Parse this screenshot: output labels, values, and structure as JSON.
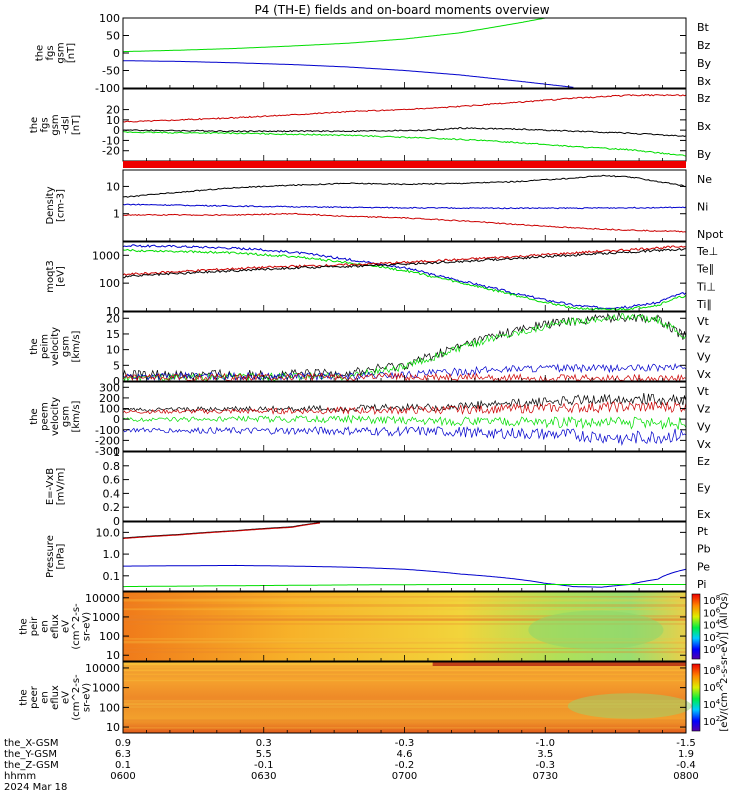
{
  "title": "P4 (TH-E) fields and on-board moments overview",
  "colors": {
    "black": "#000000",
    "red": "#cc0000",
    "green": "#00dd00",
    "blue": "#0000cc"
  },
  "chart_data": [
    {
      "id": "p1",
      "type": "line",
      "ylabel": [
        "the",
        "fgs",
        "gsm",
        "[nT]"
      ],
      "ylim": [
        -100,
        100
      ],
      "yscale": "linear",
      "yticks": [
        100,
        50,
        0,
        -50,
        -100
      ],
      "legend": [
        {
          "name": "Bt",
          "color": "black"
        },
        {
          "name": "Bz",
          "color": "red"
        },
        {
          "name": "By",
          "color": "green"
        },
        {
          "name": "Bx",
          "color": "blue"
        }
      ],
      "series": [
        {
          "name": "By",
          "color": "green",
          "x": [
            0,
            0.1,
            0.2,
            0.3,
            0.4,
            0.5,
            0.6,
            0.7,
            0.75
          ],
          "y": [
            4,
            8,
            13,
            20,
            28,
            40,
            58,
            85,
            100
          ]
        },
        {
          "name": "Bx",
          "color": "blue",
          "x": [
            0,
            0.1,
            0.2,
            0.3,
            0.4,
            0.5,
            0.6,
            0.7,
            0.8
          ],
          "y": [
            -22,
            -24,
            -28,
            -33,
            -40,
            -50,
            -63,
            -80,
            -98
          ]
        }
      ]
    },
    {
      "id": "p2",
      "type": "line",
      "ylabel": [
        "the",
        "fgs",
        "gsm",
        "-dsl",
        "[nT]"
      ],
      "ylim": [
        -30,
        40
      ],
      "yscale": "linear",
      "yticks": [
        20,
        10,
        0,
        -10,
        -20
      ],
      "legend": [
        {
          "name": "Bz",
          "color": "red"
        },
        {
          "name": "Bx",
          "color": "black"
        },
        {
          "name": "By",
          "color": "green"
        }
      ],
      "series": [
        {
          "name": "Bz",
          "color": "red",
          "x": [
            0,
            0.1,
            0.2,
            0.3,
            0.4,
            0.5,
            0.6,
            0.7,
            0.8,
            0.9,
            1.0
          ],
          "y": [
            8,
            10,
            12,
            15,
            18,
            20,
            23,
            27,
            31,
            34,
            34
          ]
        },
        {
          "name": "Bx",
          "color": "black",
          "x": [
            0,
            0.2,
            0.4,
            0.55,
            0.6,
            0.7,
            0.8,
            0.9,
            1.0
          ],
          "y": [
            0,
            -1,
            -1,
            0,
            2,
            1,
            -1,
            -3,
            -6
          ]
        },
        {
          "name": "By",
          "color": "green",
          "x": [
            0,
            0.2,
            0.4,
            0.6,
            0.7,
            0.8,
            0.9,
            1.0
          ],
          "y": [
            -2,
            -3,
            -5,
            -9,
            -12,
            -16,
            -19,
            -25
          ]
        }
      ]
    },
    {
      "id": "p3",
      "type": "line",
      "ylabel": [
        "Density",
        "[cm-3]"
      ],
      "ylim": [
        0.1,
        40
      ],
      "yscale": "log",
      "yticks": [
        10,
        1
      ],
      "legend": [
        {
          "name": "Ne",
          "color": "red"
        },
        {
          "name": "Ni",
          "color": "black"
        },
        {
          "name": "Npot",
          "color": "blue"
        }
      ],
      "series": [
        {
          "name": "Ni",
          "color": "black",
          "x": [
            0,
            0.1,
            0.2,
            0.3,
            0.4,
            0.5,
            0.6,
            0.7,
            0.8,
            0.85,
            0.9,
            0.95,
            1.0
          ],
          "y": [
            4,
            6,
            9,
            11,
            13,
            12,
            13,
            15,
            20,
            25,
            22,
            15,
            10
          ]
        },
        {
          "name": "Npot",
          "color": "blue",
          "x": [
            0,
            0.2,
            0.4,
            0.6,
            0.8,
            1.0
          ],
          "y": [
            2.2,
            1.9,
            1.7,
            1.6,
            1.6,
            1.7
          ]
        },
        {
          "name": "Ne",
          "color": "red",
          "x": [
            0,
            0.2,
            0.3,
            0.4,
            0.5,
            0.6,
            0.7,
            0.8,
            0.9,
            1.0
          ],
          "y": [
            0.9,
            0.9,
            1.0,
            0.8,
            0.7,
            0.55,
            0.4,
            0.3,
            0.25,
            0.22
          ]
        }
      ]
    },
    {
      "id": "p4",
      "type": "line",
      "ylabel": [
        "moqt3",
        "[eV]"
      ],
      "ylim": [
        10,
        3000
      ],
      "yscale": "log",
      "yticks": [
        1000,
        100,
        10
      ],
      "legend": [
        {
          "name": "Te⊥",
          "color": "red"
        },
        {
          "name": "Te∥",
          "color": "black"
        },
        {
          "name": "Ti⊥",
          "color": "blue"
        },
        {
          "name": "Ti∥",
          "color": "green"
        }
      ],
      "series": [
        {
          "name": "Ti⊥",
          "color": "blue",
          "x": [
            0,
            0.1,
            0.2,
            0.3,
            0.38,
            0.45,
            0.5,
            0.55,
            0.6,
            0.65,
            0.7,
            0.75,
            0.8,
            0.85,
            0.9,
            0.95,
            1.0
          ],
          "y": [
            2200,
            2100,
            1800,
            1300,
            800,
            500,
            350,
            200,
            120,
            70,
            40,
            25,
            16,
            13,
            14,
            20,
            45
          ]
        },
        {
          "name": "Ti∥",
          "color": "green",
          "x": [
            0,
            0.1,
            0.2,
            0.3,
            0.38,
            0.45,
            0.5,
            0.55,
            0.6,
            0.65,
            0.7,
            0.75,
            0.8,
            0.85,
            0.9,
            0.95,
            1.0
          ],
          "y": [
            1500,
            1400,
            1200,
            900,
            600,
            400,
            280,
            170,
            100,
            60,
            35,
            20,
            13,
            11,
            12,
            16,
            35
          ]
        },
        {
          "name": "Te⊥",
          "color": "red",
          "x": [
            0,
            0.1,
            0.2,
            0.3,
            0.4,
            0.5,
            0.6,
            0.7,
            0.8,
            0.9,
            1.0
          ],
          "y": [
            200,
            260,
            330,
            400,
            450,
            550,
            700,
            900,
            1200,
            1600,
            2100
          ]
        },
        {
          "name": "Te∥",
          "color": "black",
          "x": [
            0,
            0.1,
            0.2,
            0.3,
            0.4,
            0.5,
            0.6,
            0.7,
            0.8,
            0.9,
            1.0
          ],
          "y": [
            170,
            220,
            280,
            350,
            400,
            480,
            600,
            780,
            1000,
            1300,
            1700
          ]
        }
      ]
    },
    {
      "id": "p5",
      "type": "line",
      "ylabel": [
        "the",
        "peim",
        "velocity",
        "gsm",
        "[km/s]"
      ],
      "ylim": [
        0,
        22
      ],
      "yscale": "linear",
      "yticks": [
        20,
        15,
        10,
        5,
        0
      ],
      "legend": [
        {
          "name": "Vt",
          "color": "black"
        },
        {
          "name": "Vz",
          "color": "red"
        },
        {
          "name": "Vy",
          "color": "green"
        },
        {
          "name": "Vx",
          "color": "blue"
        }
      ],
      "series": [
        {
          "name": "Vt",
          "color": "black",
          "x": [
            0,
            0.1,
            0.2,
            0.3,
            0.4,
            0.5,
            0.55,
            0.6,
            0.65,
            0.7,
            0.75,
            0.8,
            0.85,
            0.9,
            0.95,
            1.0
          ],
          "y": [
            2,
            2,
            2,
            2,
            2.5,
            5,
            8,
            11,
            14,
            16,
            18,
            19,
            20,
            20.5,
            19.5,
            14
          ]
        },
        {
          "name": "Vy",
          "color": "green",
          "x": [
            0,
            0.4,
            0.5,
            0.55,
            0.6,
            0.65,
            0.7,
            0.75,
            0.8,
            0.85,
            0.9,
            0.95,
            1.0
          ],
          "y": [
            1,
            1.5,
            4.5,
            7.5,
            10.5,
            13.5,
            15.5,
            17.5,
            19,
            20,
            20.5,
            19.5,
            14
          ]
        },
        {
          "name": "Vx",
          "color": "blue",
          "x": [
            0,
            0.2,
            0.4,
            0.5,
            0.6,
            0.7,
            0.8,
            0.9,
            1.0
          ],
          "y": [
            1.5,
            1.5,
            1.5,
            2,
            3,
            4,
            4,
            4,
            4.5
          ]
        },
        {
          "name": "Vz",
          "color": "red",
          "x": [
            0,
            0.2,
            0.4,
            0.6,
            0.8,
            1.0
          ],
          "y": [
            1,
            1.2,
            1.4,
            1.2,
            1,
            0.8
          ]
        }
      ]
    },
    {
      "id": "p6",
      "type": "line",
      "ylabel": [
        "the",
        "peem",
        "velocity",
        "gsm",
        "[km/s]"
      ],
      "ylim": [
        -300,
        350
      ],
      "yscale": "linear",
      "yticks": [
        300,
        200,
        100,
        0,
        -100,
        -200,
        -300
      ],
      "legend": [
        {
          "name": "Vt",
          "color": "black"
        },
        {
          "name": "Vz",
          "color": "red"
        },
        {
          "name": "Vy",
          "color": "green"
        },
        {
          "name": "Vx",
          "color": "blue"
        }
      ],
      "series": [
        {
          "name": "Vt",
          "color": "black",
          "x": [
            0,
            0.2,
            0.4,
            0.6,
            0.7,
            0.8,
            0.9,
            1.0
          ],
          "y": [
            90,
            95,
            100,
            120,
            150,
            180,
            200,
            170
          ]
        },
        {
          "name": "Vz",
          "color": "red",
          "x": [
            0,
            0.2,
            0.4,
            0.6,
            0.8,
            1.0
          ],
          "y": [
            70,
            75,
            80,
            90,
            110,
            120
          ]
        },
        {
          "name": "Vy",
          "color": "green",
          "x": [
            0,
            0.2,
            0.4,
            0.6,
            0.8,
            1.0
          ],
          "y": [
            -5,
            0,
            0,
            -20,
            -30,
            -40
          ]
        },
        {
          "name": "Vx",
          "color": "blue",
          "x": [
            0,
            0.2,
            0.4,
            0.6,
            0.8,
            0.9,
            1.0
          ],
          "y": [
            -100,
            -110,
            -110,
            -120,
            -150,
            -180,
            -150
          ]
        }
      ]
    },
    {
      "id": "p7",
      "type": "line",
      "ylabel": [
        "E=-VxB",
        "[mV/m]"
      ],
      "ylim": [
        0,
        1
      ],
      "yscale": "linear",
      "yticks": [
        1.0,
        0.8,
        0.6,
        0.4,
        0.2,
        0.0
      ],
      "legend": [
        {
          "name": "Ez",
          "color": "red"
        },
        {
          "name": "Ey",
          "color": "green"
        },
        {
          "name": "Ex",
          "color": "blue"
        }
      ],
      "series": []
    },
    {
      "id": "p8",
      "type": "line",
      "ylabel": [
        "Pressure",
        "[nPa]"
      ],
      "ylim": [
        0.02,
        30
      ],
      "yscale": "log",
      "yticks": [
        10.0,
        1.0,
        0.1
      ],
      "ytick_labels": [
        "10.0",
        "1.0",
        "0.1"
      ],
      "legend": [
        {
          "name": "Pt",
          "color": "black"
        },
        {
          "name": "Pb",
          "color": "red"
        },
        {
          "name": "Pe",
          "color": "green"
        },
        {
          "name": "Pi",
          "color": "blue"
        }
      ],
      "series": [
        {
          "name": "Pt",
          "color": "black",
          "x": [
            0,
            0.1,
            0.2,
            0.3,
            0.35
          ],
          "y": [
            5.5,
            8,
            12,
            18,
            28
          ]
        },
        {
          "name": "Pb",
          "color": "red",
          "x": [
            0,
            0.1,
            0.2,
            0.3,
            0.35
          ],
          "y": [
            5.2,
            7.6,
            11.5,
            17,
            27
          ]
        },
        {
          "name": "Pi",
          "color": "blue",
          "x": [
            0,
            0.2,
            0.3,
            0.4,
            0.5,
            0.6,
            0.7,
            0.75,
            0.8,
            0.85,
            0.9,
            0.95,
            1.0
          ],
          "y": [
            0.28,
            0.3,
            0.28,
            0.25,
            0.2,
            0.12,
            0.07,
            0.045,
            0.032,
            0.03,
            0.04,
            0.07,
            0.2
          ]
        },
        {
          "name": "Pe",
          "color": "green",
          "x": [
            0,
            0.2,
            0.4,
            0.6,
            0.8,
            0.9,
            1.0
          ],
          "y": [
            0.032,
            0.035,
            0.038,
            0.04,
            0.04,
            0.04,
            0.04
          ]
        }
      ]
    },
    {
      "id": "p9",
      "type": "heatmap",
      "ylabel": [
        "the",
        "peir",
        "en",
        "eflux",
        "eV",
        "(cm^2-s-",
        "sr-eV)"
      ],
      "ylim": [
        5,
        20000
      ],
      "yscale": "log",
      "yticks": [
        10000,
        1000,
        100,
        10
      ],
      "ytick_labels": [
        "10000",
        "1000",
        "100",
        "10"
      ],
      "colorbar": {
        "ticks_exp": [
          "8",
          "6",
          "4",
          "2",
          "0"
        ],
        "label": "[eV/(cm^2-s-sr-eV)] (All Qs)"
      }
    },
    {
      "id": "p10",
      "type": "heatmap",
      "ylabel": [
        "the",
        "peer",
        "en",
        "eflux",
        "eV",
        "(cm^2-s-",
        "sr-eV)"
      ],
      "ylim": [
        5,
        20000
      ],
      "yscale": "log",
      "yticks": [
        10000,
        1000,
        100,
        10
      ],
      "ytick_labels": [
        "10000",
        "1000",
        "100",
        "10"
      ],
      "colorbar": {
        "ticks_exp": [
          "8",
          "6",
          "4",
          "2"
        ],
        "label": "[eV/(cm^2-s-sr-eV)] (All Qs)"
      }
    }
  ],
  "xaxis": {
    "row_labels": [
      "the_X-GSM",
      "the_Y-GSM",
      "the_Z-GSM",
      "hhmm",
      "2024 Mar 18"
    ],
    "ticks": [
      {
        "x": 0.0,
        "vals": [
          "0.9",
          "6.3",
          "0.1",
          "0600"
        ]
      },
      {
        "x": 0.25,
        "vals": [
          "0.3",
          "5.5",
          "-0.1",
          "0630"
        ]
      },
      {
        "x": 0.5,
        "vals": [
          "-0.3",
          "4.6",
          "-0.2",
          "0700"
        ]
      },
      {
        "x": 0.75,
        "vals": [
          "-1.0",
          "3.5",
          "-0.3",
          "0730"
        ]
      },
      {
        "x": 1.0,
        "vals": [
          "-1.5",
          "1.9",
          "-0.4",
          "0800"
        ]
      }
    ]
  }
}
